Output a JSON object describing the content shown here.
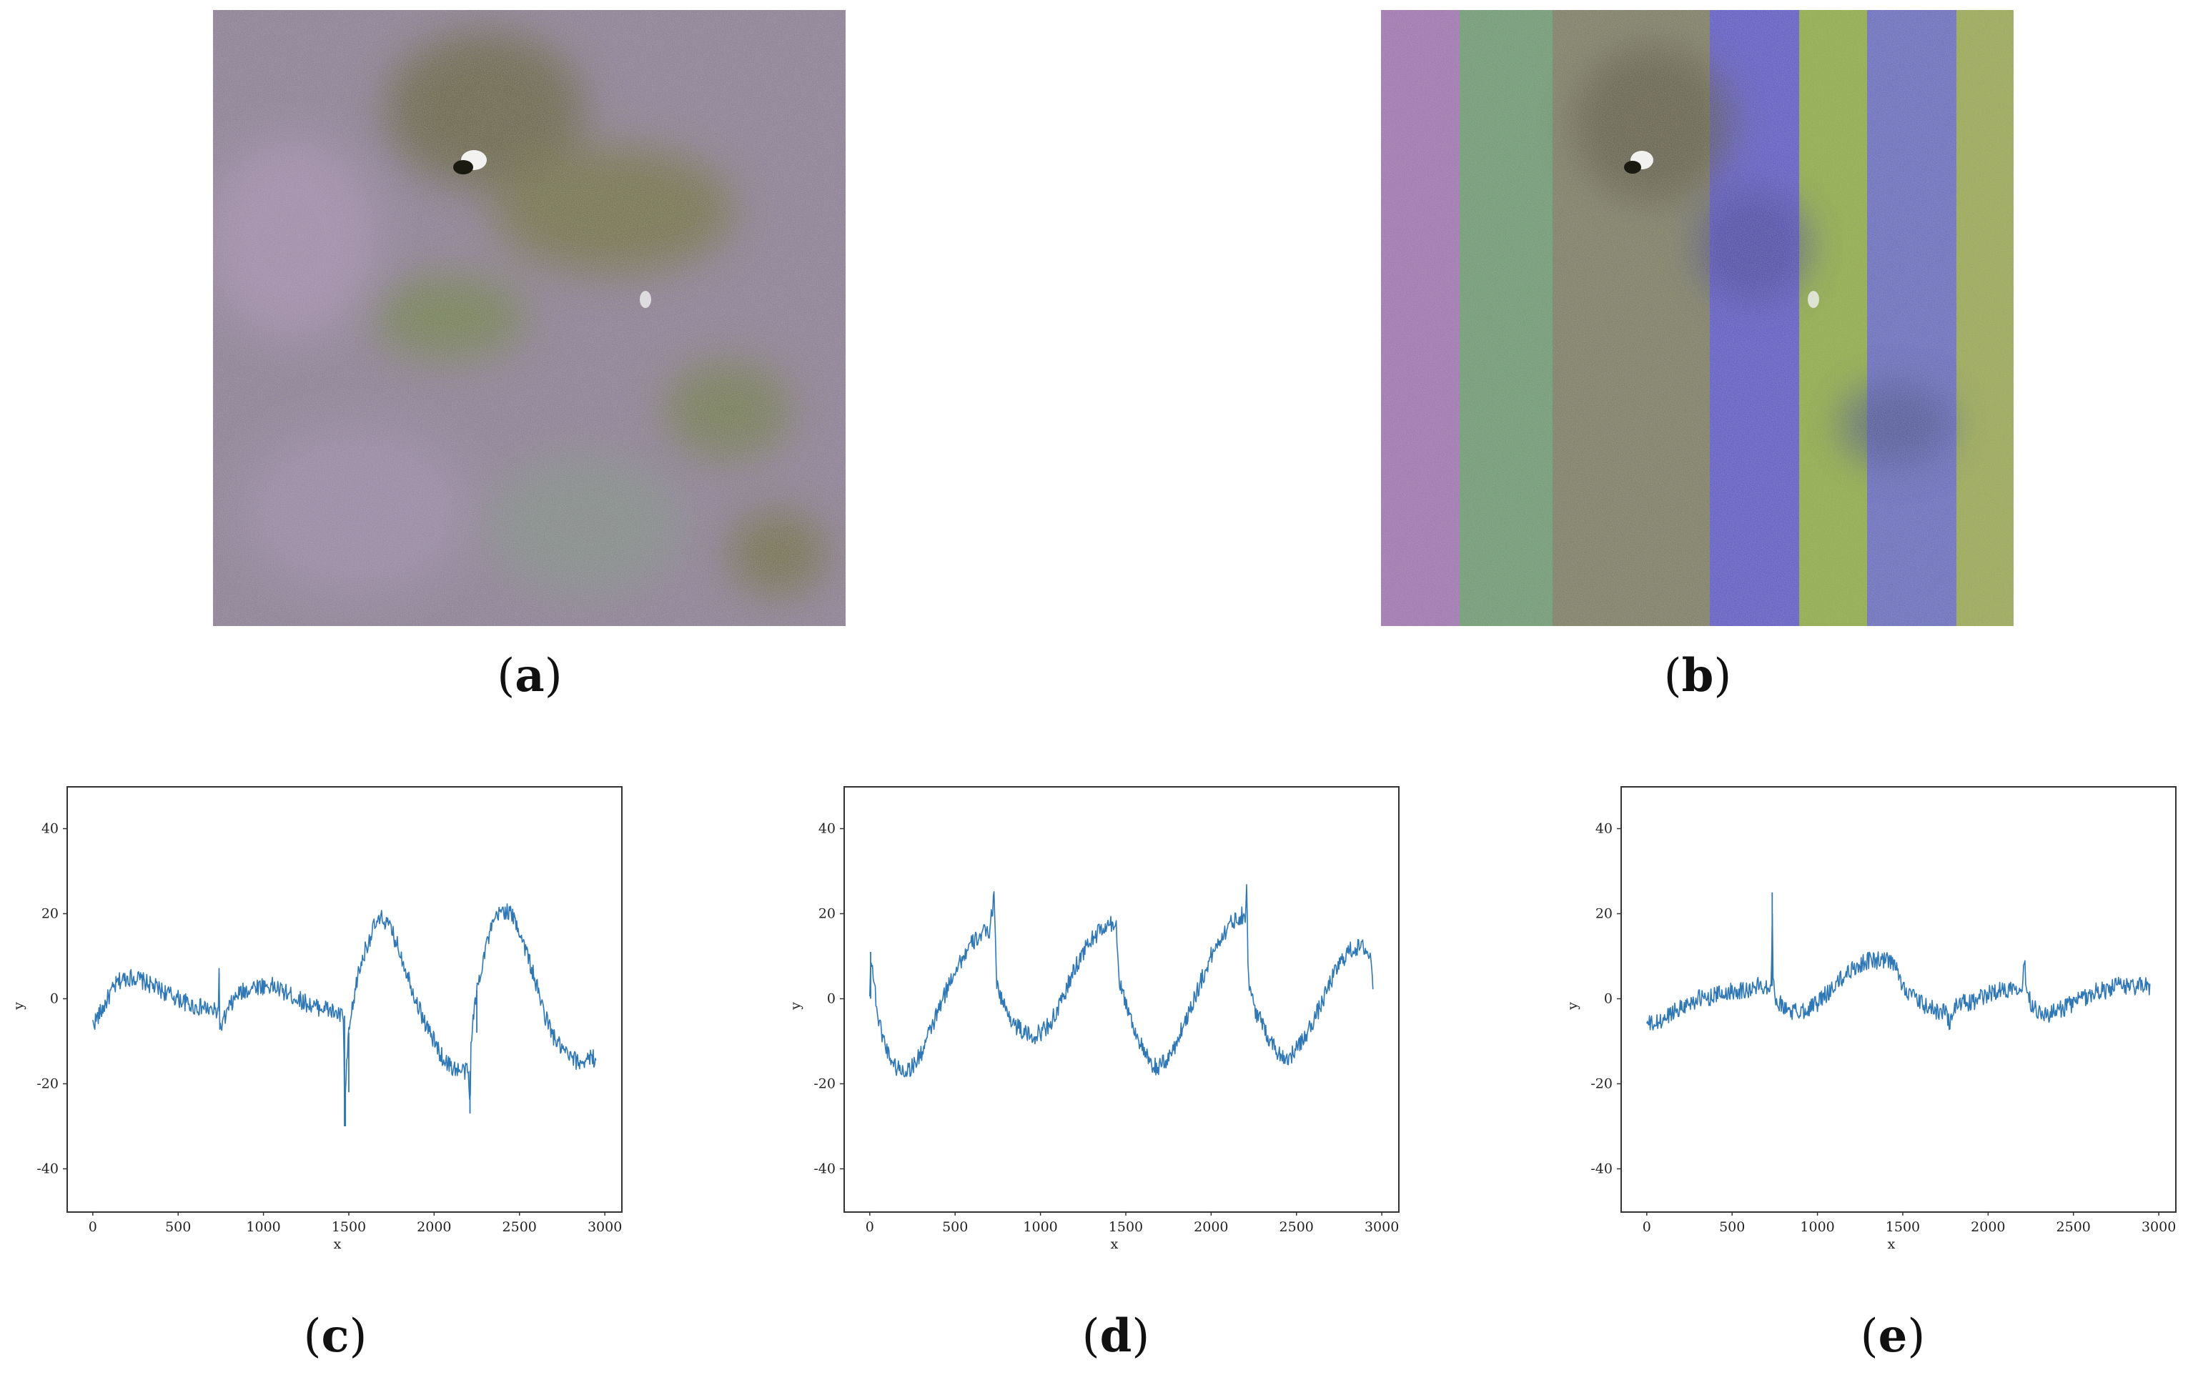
{
  "panels": {
    "a": {
      "caption_open": "(",
      "caption_letter": "a",
      "caption_close": ")"
    },
    "b": {
      "caption_open": "(",
      "caption_letter": "b",
      "caption_close": ")"
    },
    "c": {
      "caption_open": "(",
      "caption_letter": "c",
      "caption_close": ")"
    },
    "d": {
      "caption_open": "(",
      "caption_letter": "d",
      "caption_close": ")"
    },
    "e": {
      "caption_open": "(",
      "caption_letter": "e",
      "caption_close": ")"
    }
  },
  "colors": {
    "line": "#2f78b5",
    "frame": "#333333"
  },
  "chart_data": [
    {
      "id": "c",
      "type": "line",
      "xlabel": "x",
      "ylabel": "y",
      "xlim": [
        -150,
        3100
      ],
      "ylim": [
        -50,
        50
      ],
      "xticks": [
        0,
        500,
        1000,
        1500,
        2000,
        2500,
        3000
      ],
      "yticks": [
        -40,
        -20,
        0,
        20,
        40
      ],
      "series": [
        {
          "x": [
            0,
            50,
            100,
            150,
            200,
            250,
            300,
            350,
            400,
            450,
            500,
            550,
            600,
            650,
            700,
            735,
            740,
            745,
            760,
            800,
            850,
            900,
            950,
            1000,
            1050,
            1100,
            1150,
            1200,
            1250,
            1300,
            1350,
            1400,
            1450,
            1470,
            1475,
            1480,
            1500,
            1550,
            1600,
            1650,
            1700,
            1750,
            1800,
            1850,
            1900,
            1950,
            2000,
            2050,
            2100,
            2150,
            2200,
            2210,
            2215,
            2220,
            2250,
            2300,
            2350,
            2400,
            2450,
            2500,
            2550,
            2600,
            2650,
            2700,
            2750,
            2800,
            2850,
            2900,
            2950
          ],
          "y": [
            -6,
            -3,
            1,
            4,
            5,
            5,
            4,
            3,
            2,
            1,
            0,
            -1,
            -2,
            -2,
            -3,
            -3,
            6,
            -8,
            -6,
            -2,
            1,
            2,
            3,
            3,
            3,
            2,
            1,
            0,
            -1,
            -2,
            -2,
            -3,
            -4,
            -4,
            -30,
            -22,
            -8,
            5,
            12,
            17,
            19,
            16,
            11,
            5,
            -1,
            -6,
            -10,
            -14,
            -16,
            -17,
            -17,
            -27,
            -12,
            -8,
            2,
            12,
            18,
            21,
            20,
            16,
            10,
            3,
            -4,
            -9,
            -12,
            -14,
            -15,
            -14,
            -14
          ]
        }
      ]
    },
    {
      "id": "d",
      "type": "line",
      "xlabel": "x",
      "ylabel": "y",
      "xlim": [
        -150,
        3100
      ],
      "ylim": [
        -50,
        50
      ],
      "xticks": [
        0,
        500,
        1000,
        1500,
        2000,
        2500,
        3000
      ],
      "yticks": [
        -40,
        -20,
        0,
        20,
        40
      ],
      "series": [
        {
          "x": [
            0,
            5,
            50,
            100,
            150,
            200,
            250,
            300,
            350,
            400,
            450,
            500,
            550,
            600,
            650,
            700,
            730,
            735,
            745,
            800,
            850,
            900,
            950,
            1000,
            1050,
            1100,
            1150,
            1200,
            1250,
            1300,
            1350,
            1400,
            1440,
            1450,
            1460,
            1500,
            1550,
            1600,
            1650,
            1700,
            1750,
            1800,
            1850,
            1900,
            1950,
            2000,
            2050,
            2100,
            2150,
            2200,
            2210,
            2215,
            2225,
            2250,
            2300,
            2350,
            2400,
            2450,
            2500,
            2550,
            2600,
            2650,
            2700,
            2750,
            2800,
            2850,
            2900,
            2940,
            2950
          ],
          "y": [
            0,
            11,
            -5,
            -12,
            -16,
            -17,
            -16,
            -13,
            -8,
            -3,
            2,
            7,
            10,
            13,
            15,
            16,
            24,
            17,
            3,
            -3,
            -6,
            -8,
            -9,
            -8,
            -6,
            -3,
            2,
            7,
            11,
            14,
            16,
            17,
            18,
            14,
            5,
            -1,
            -7,
            -12,
            -16,
            -16,
            -14,
            -10,
            -5,
            0,
            5,
            10,
            14,
            17,
            19,
            20,
            26,
            10,
            3,
            -2,
            -6,
            -10,
            -13,
            -14,
            -12,
            -9,
            -5,
            -1,
            4,
            8,
            11,
            12,
            12,
            9,
            2
          ]
        }
      ]
    },
    {
      "id": "e",
      "type": "line",
      "xlabel": "x",
      "ylabel": "y",
      "xlim": [
        -150,
        3100
      ],
      "ylim": [
        -50,
        50
      ],
      "xticks": [
        0,
        500,
        1000,
        1500,
        2000,
        2500,
        3000
      ],
      "yticks": [
        -40,
        -20,
        0,
        20,
        40
      ],
      "series": [
        {
          "x": [
            0,
            50,
            100,
            150,
            200,
            250,
            300,
            350,
            400,
            450,
            500,
            550,
            600,
            650,
            700,
            730,
            735,
            740,
            760,
            800,
            850,
            900,
            950,
            1000,
            1050,
            1100,
            1150,
            1200,
            1250,
            1300,
            1350,
            1400,
            1450,
            1470,
            1500,
            1550,
            1600,
            1650,
            1700,
            1750,
            1780,
            1800,
            1850,
            1900,
            1950,
            2000,
            2050,
            2100,
            2150,
            2200,
            2215,
            2220,
            2230,
            2250,
            2300,
            2350,
            2400,
            2450,
            2500,
            2550,
            2600,
            2650,
            2700,
            2750,
            2800,
            2850,
            2900,
            2950
          ],
          "y": [
            -6,
            -6,
            -5,
            -3,
            -2,
            -1,
            0,
            0,
            1,
            1,
            2,
            2,
            2,
            3,
            3,
            3,
            25,
            3,
            0,
            -2,
            -3,
            -3,
            -2,
            -1,
            1,
            3,
            5,
            7,
            8,
            9,
            9,
            9,
            8,
            6,
            3,
            1,
            -1,
            -2,
            -3,
            -3,
            -6,
            -2,
            -1,
            -1,
            0,
            1,
            2,
            2,
            3,
            3,
            9,
            5,
            2,
            -1,
            -3,
            -4,
            -3,
            -2,
            -1,
            0,
            1,
            2,
            2,
            3,
            3,
            3,
            3,
            3
          ]
        }
      ]
    }
  ]
}
